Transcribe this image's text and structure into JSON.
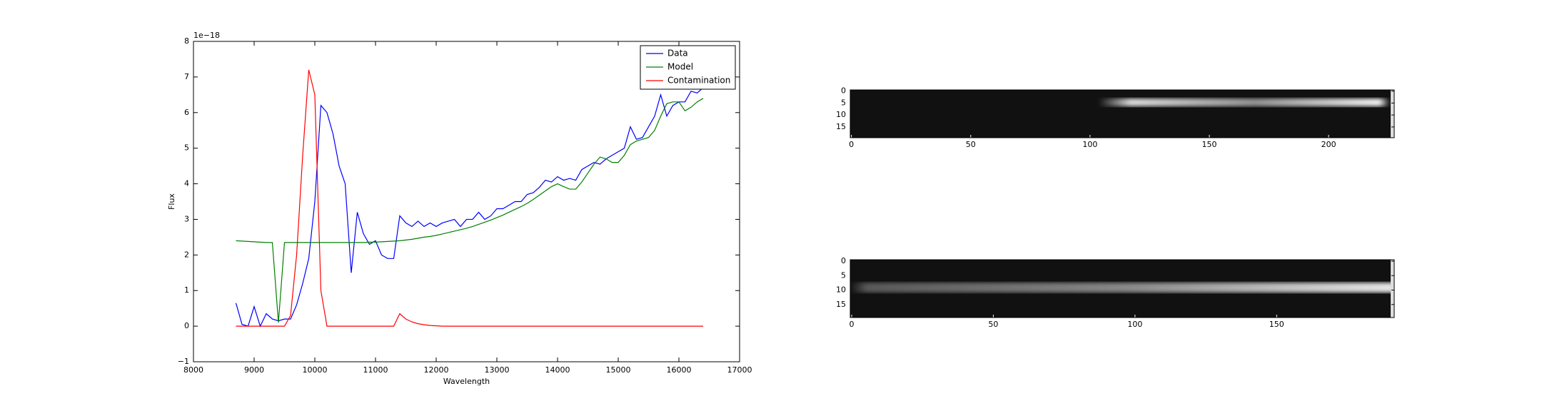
{
  "chart_data": [
    {
      "type": "line",
      "x_label": "Wavelength",
      "y_label": "Flux",
      "y_offset_label": "1e−18",
      "x": [
        8700,
        8800,
        8900,
        9000,
        9100,
        9200,
        9300,
        9400,
        9500,
        9600,
        9700,
        9800,
        9900,
        10000,
        10100,
        10200,
        10300,
        10400,
        10500,
        10600,
        10700,
        10800,
        10900,
        11000,
        11100,
        11200,
        11300,
        11400,
        11500,
        11600,
        11700,
        11800,
        11900,
        12000,
        12100,
        12200,
        12300,
        12400,
        12500,
        12600,
        12700,
        12800,
        12900,
        13000,
        13100,
        13200,
        13300,
        13400,
        13500,
        13600,
        13700,
        13800,
        13900,
        14000,
        14100,
        14200,
        14300,
        14400,
        14500,
        14600,
        14700,
        14800,
        14900,
        15000,
        15100,
        15200,
        15300,
        15400,
        15500,
        15600,
        15700,
        15800,
        15900,
        16000,
        16100,
        16200,
        16300,
        16400
      ],
      "series": [
        {
          "name": "Data",
          "color": "#0000ff",
          "values": [
            0.65,
            0.05,
            0.0,
            0.55,
            0.0,
            0.35,
            0.2,
            0.15,
            0.2,
            0.2,
            0.6,
            1.2,
            1.9,
            3.5,
            6.2,
            6.0,
            5.4,
            4.5,
            4.0,
            1.5,
            3.2,
            2.6,
            2.3,
            2.4,
            2.0,
            1.9,
            1.9,
            3.1,
            2.9,
            2.8,
            2.95,
            2.8,
            2.9,
            2.8,
            2.9,
            2.95,
            3.0,
            2.8,
            3.0,
            3.0,
            3.2,
            3.0,
            3.1,
            3.3,
            3.3,
            3.4,
            3.5,
            3.5,
            3.7,
            3.75,
            3.9,
            4.1,
            4.05,
            4.2,
            4.1,
            4.15,
            4.1,
            4.4,
            4.5,
            4.6,
            4.55,
            4.7,
            4.8,
            4.9,
            5.0,
            5.6,
            5.25,
            5.3,
            5.6,
            5.9,
            6.5,
            5.9,
            6.2,
            6.3,
            6.3,
            6.6,
            6.55,
            6.7
          ]
        },
        {
          "name": "Model",
          "color": "#008000",
          "values": [
            2.4,
            2.39,
            2.38,
            2.37,
            2.36,
            2.35,
            2.35,
            0.1,
            2.35,
            2.35,
            2.35,
            2.35,
            2.35,
            2.35,
            2.35,
            2.35,
            2.35,
            2.35,
            2.35,
            2.35,
            2.35,
            2.35,
            2.36,
            2.36,
            2.37,
            2.38,
            2.39,
            2.4,
            2.42,
            2.44,
            2.47,
            2.5,
            2.52,
            2.55,
            2.59,
            2.63,
            2.67,
            2.71,
            2.75,
            2.8,
            2.86,
            2.92,
            2.98,
            3.05,
            3.12,
            3.2,
            3.28,
            3.36,
            3.45,
            3.56,
            3.68,
            3.8,
            3.92,
            4.0,
            3.92,
            3.85,
            3.85,
            4.05,
            4.3,
            4.55,
            4.75,
            4.7,
            4.6,
            4.6,
            4.8,
            5.1,
            5.2,
            5.25,
            5.3,
            5.5,
            5.9,
            6.25,
            6.3,
            6.3,
            6.05,
            6.15,
            6.3,
            6.4
          ]
        },
        {
          "name": "Contamination",
          "color": "#ff0000",
          "values": [
            0,
            0,
            0,
            0,
            0,
            0,
            0,
            0,
            0,
            0.3,
            2.0,
            4.8,
            7.2,
            6.5,
            1.0,
            0,
            0,
            0,
            0,
            0,
            0,
            0,
            0,
            0,
            0,
            0,
            0,
            0.35,
            0.2,
            0.12,
            0.07,
            0.04,
            0.02,
            0.01,
            0,
            0,
            0,
            0,
            0,
            0,
            0,
            0,
            0,
            0,
            0,
            0,
            0,
            0,
            0,
            0,
            0,
            0,
            0,
            0,
            0,
            0,
            0,
            0,
            0,
            0,
            0,
            0,
            0,
            0,
            0,
            0,
            0,
            0,
            0,
            0,
            0,
            0,
            0,
            0,
            0,
            0,
            0,
            0
          ]
        }
      ],
      "xlim": [
        8000,
        17000
      ],
      "ylim": [
        -1,
        8
      ],
      "xticks": [
        8000,
        9000,
        10000,
        11000,
        12000,
        13000,
        14000,
        15000,
        16000,
        17000
      ],
      "yticks": [
        {
          "value": -1,
          "label": "−1"
        },
        0,
        1,
        2,
        3,
        4,
        5,
        6,
        7,
        8
      ],
      "legend": "upper right"
    },
    {
      "type": "image",
      "xlim": [
        -0.5,
        227.5
      ],
      "ylim": [
        19.5,
        -0.5
      ],
      "xticks": [
        0,
        50,
        100,
        150,
        200
      ],
      "yticks": [
        0,
        5,
        10,
        15
      ]
    },
    {
      "type": "image",
      "xlim": [
        -0.5,
        191.5
      ],
      "ylim": [
        19.5,
        -0.5
      ],
      "xticks": [
        0,
        50,
        100,
        150
      ],
      "yticks": [
        0,
        5,
        10,
        15
      ]
    }
  ]
}
